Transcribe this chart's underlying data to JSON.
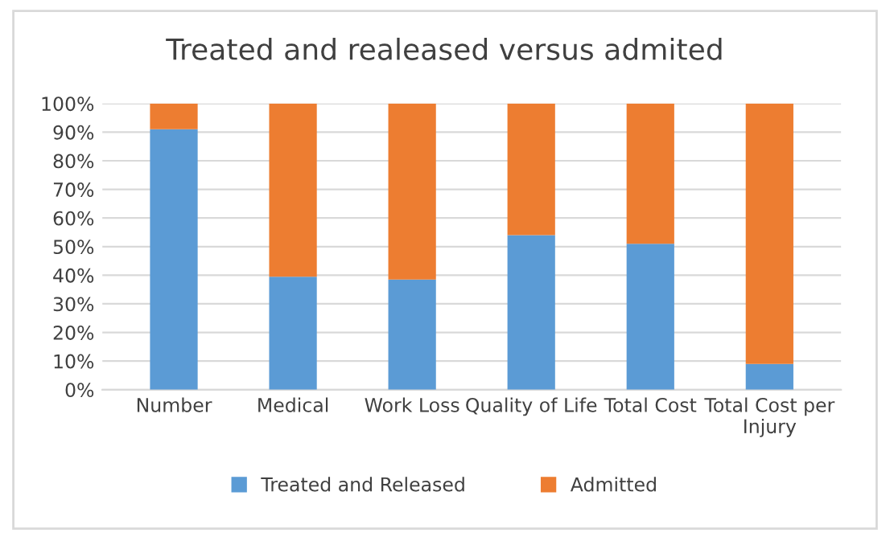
{
  "chart_data": {
    "type": "bar",
    "stacked": true,
    "title": "Treated and realeased versus admited",
    "categories": [
      "Number",
      "Medical",
      "Work Loss",
      "Quality of Life",
      "Total Cost",
      "Total Cost per Injury"
    ],
    "series": [
      {
        "name": "Treated and Released",
        "color": "#5b9bd5",
        "values": [
          91,
          39.5,
          38.5,
          54,
          51,
          9
        ]
      },
      {
        "name": "Admitted",
        "color": "#ed7d31",
        "values": [
          9,
          60.5,
          61.5,
          46,
          49,
          91
        ]
      }
    ],
    "ylim": [
      0,
      100
    ],
    "yticks": [
      {
        "value": 0,
        "label": "0%"
      },
      {
        "value": 10,
        "label": "10%"
      },
      {
        "value": 20,
        "label": "20%"
      },
      {
        "value": 30,
        "label": "30%"
      },
      {
        "value": 40,
        "label": "40%"
      },
      {
        "value": 50,
        "label": "50%"
      },
      {
        "value": 60,
        "label": "60%"
      },
      {
        "value": 70,
        "label": "70%"
      },
      {
        "value": 80,
        "label": "80%"
      },
      {
        "value": 90,
        "label": "90%"
      },
      {
        "value": 100,
        "label": "100%"
      }
    ],
    "grid": "y",
    "legend": "bottom"
  }
}
